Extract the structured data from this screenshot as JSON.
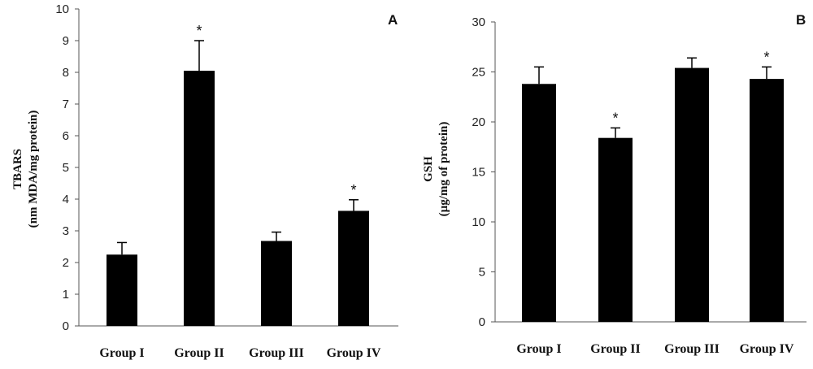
{
  "chart_data": [
    {
      "type": "bar",
      "panel_label": "A",
      "categories": [
        "Group I",
        "Group II",
        "Group III",
        "Group IV"
      ],
      "values": [
        2.25,
        8.05,
        2.68,
        3.63
      ],
      "errors": [
        0.38,
        0.95,
        0.28,
        0.35
      ],
      "significance": [
        "",
        "*",
        "",
        "*"
      ],
      "ylabel_line1": "TBARS",
      "ylabel_line2": "(nm MDA/mg protein)",
      "ylim": [
        0,
        10
      ],
      "yticks": [
        0,
        1,
        2,
        3,
        4,
        5,
        6,
        7,
        8,
        9,
        10
      ],
      "grid": false,
      "bar_color": "#000000"
    },
    {
      "type": "bar",
      "panel_label": "B",
      "categories": [
        "Group I",
        "Group II",
        "Group III",
        "Group IV"
      ],
      "values": [
        23.8,
        18.4,
        25.4,
        24.3
      ],
      "errors": [
        1.7,
        1.0,
        1.0,
        1.2
      ],
      "significance": [
        "",
        "*",
        "",
        "*"
      ],
      "ylabel_line1": "GSH",
      "ylabel_line2": "(µg/mg of protein)",
      "ylim": [
        0,
        30
      ],
      "yticks": [
        0,
        5,
        10,
        15,
        20,
        25,
        30
      ],
      "grid": false,
      "bar_color": "#000000"
    }
  ]
}
